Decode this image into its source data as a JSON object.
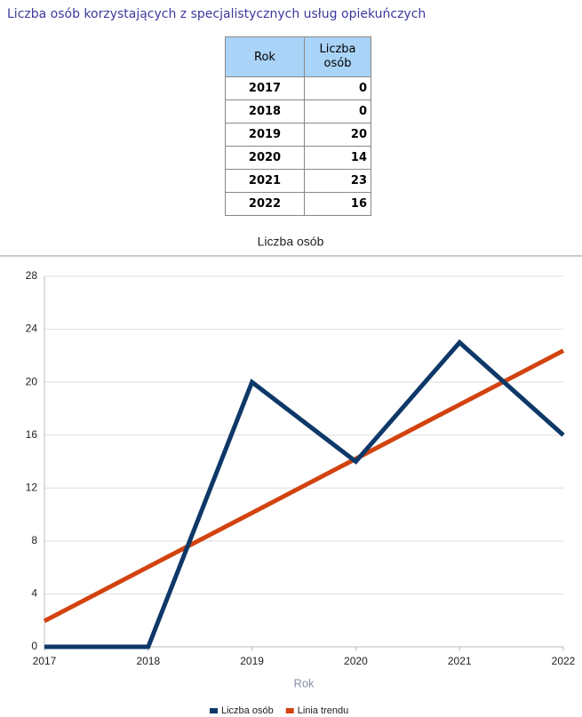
{
  "title": "Liczba osób korzystających z specjalistycznych usług opiekuńczych",
  "table": {
    "header": [
      "Rok",
      "Liczba osób"
    ],
    "rows": [
      [
        2017,
        0
      ],
      [
        2018,
        0
      ],
      [
        2019,
        20
      ],
      [
        2020,
        14
      ],
      [
        2021,
        23
      ],
      [
        2022,
        16
      ]
    ]
  },
  "chart_data": {
    "type": "line",
    "title": "Liczba osób",
    "x_label": "Rok",
    "x": [
      2017,
      2018,
      2019,
      2020,
      2021,
      2022
    ],
    "series": [
      {
        "name": "Liczba osób",
        "color": "#0e3868",
        "values": [
          0,
          0,
          20,
          14,
          23,
          16
        ]
      },
      {
        "name": "Linia trendu",
        "color": "#d2430f",
        "values": [
          1.95,
          6.04,
          10.12,
          14.21,
          18.3,
          22.38
        ]
      }
    ],
    "xlim": [
      2017,
      2022
    ],
    "xticks": [
      2017,
      2018,
      2019,
      2020,
      2021,
      2022
    ],
    "ylim": [
      0,
      28
    ],
    "yticks": [
      0,
      4,
      8,
      12,
      16,
      20,
      24,
      28
    ],
    "grid": true,
    "legend": "bottom"
  }
}
